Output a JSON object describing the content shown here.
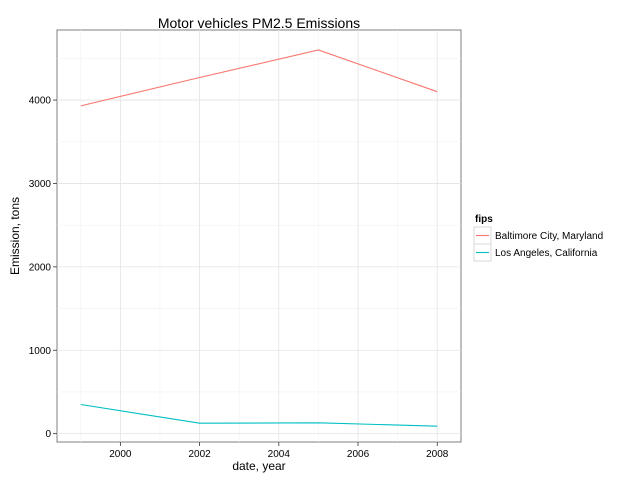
{
  "chart_data": {
    "type": "line",
    "title": "Motor vehicles PM2.5 Emissions",
    "xlabel": "date, year",
    "ylabel": "Emission, tons",
    "x": [
      1999,
      2002,
      2005,
      2008
    ],
    "xlim": [
      1998.4,
      2008.6
    ],
    "ylim": [
      -100,
      4840
    ],
    "x_ticks": [
      2000,
      2002,
      2004,
      2006,
      2008
    ],
    "y_ticks": [
      0,
      1000,
      2000,
      3000,
      4000
    ],
    "grid": true,
    "legend_title": "fips",
    "legend_position": "right",
    "series": [
      {
        "name": "Baltimore City, Maryland",
        "color": "#F8766D",
        "values": [
          3930,
          4270,
          4600,
          4100
        ]
      },
      {
        "name": "Los Angeles, California",
        "color": "#00BFC4",
        "values": [
          350,
          125,
          130,
          90
        ]
      }
    ]
  }
}
